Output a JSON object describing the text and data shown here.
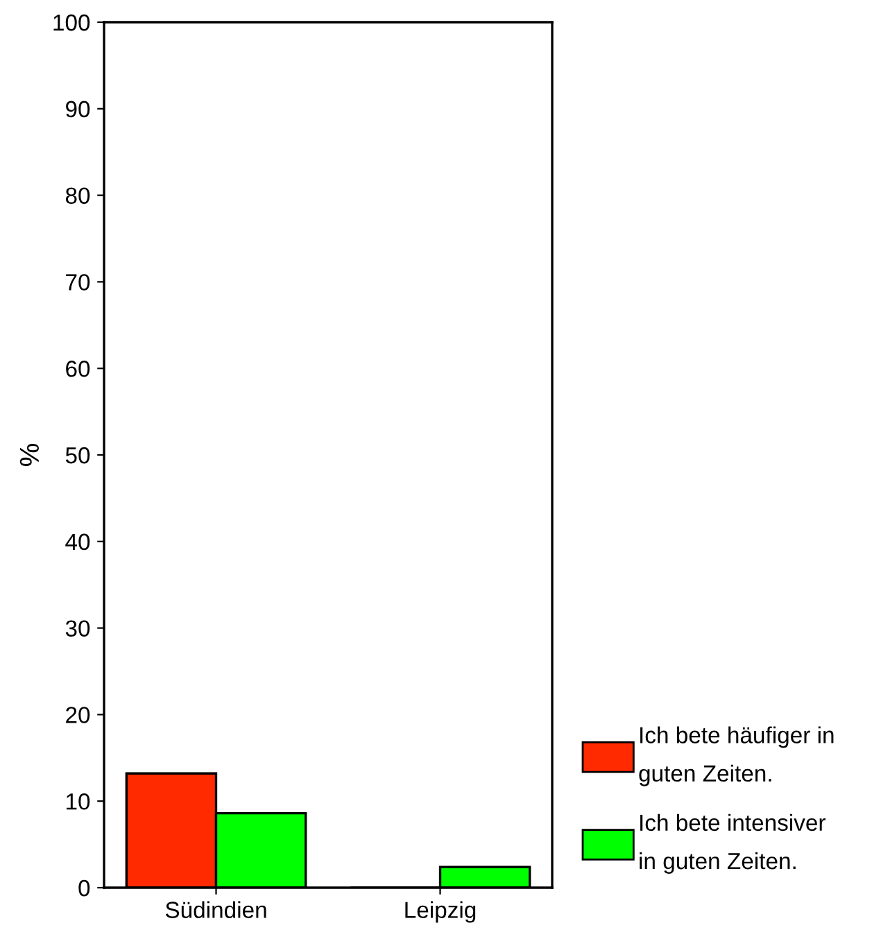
{
  "chart_data": {
    "type": "bar",
    "ylabel": "%",
    "categories": [
      "Südindien",
      "Leipzig"
    ],
    "series": [
      {
        "name": "Ich bete häufiger in guten Zeiten.",
        "color": "#ff2a00",
        "values": [
          13.2,
          0
        ]
      },
      {
        "name": "Ich bete intensiver in guten Zeiten.",
        "color": "#00ff00",
        "values": [
          8.6,
          2.4
        ]
      }
    ],
    "ylim": [
      0,
      100
    ],
    "yticks": [
      0,
      10,
      20,
      30,
      40,
      50,
      60,
      70,
      80,
      90,
      100
    ],
    "grid": false,
    "legend": "bottom right"
  }
}
